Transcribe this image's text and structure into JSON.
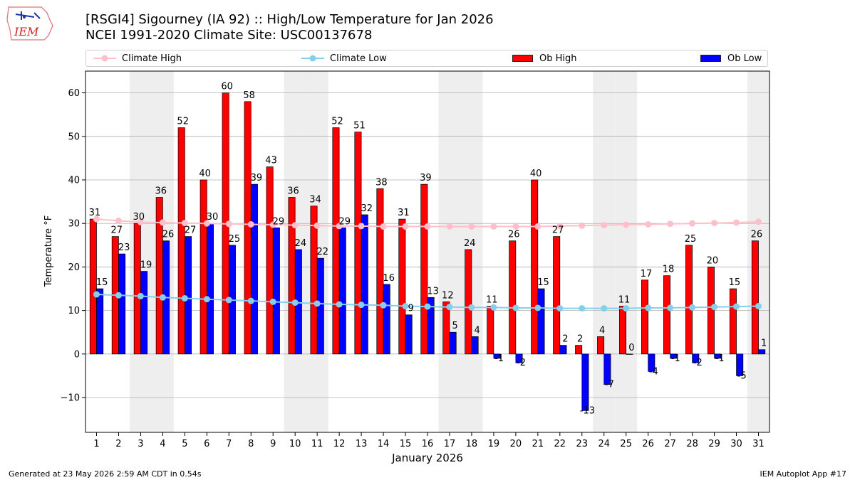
{
  "header": {
    "title_line1": "[RSGI4] Sigourney (IA 92) :: High/Low Temperature for Jan 2026",
    "title_line2": "NCEI 1991-2020 Climate Site: USC00137678",
    "logo_text": "IEM"
  },
  "footer": {
    "generated": "Generated at 23 May 2026 2:59 AM CDT in 0.54s",
    "app": "IEM Autoplot App #17"
  },
  "colors": {
    "ob_high": "#ff0000",
    "ob_low": "#0000ff",
    "climate_high": "#ffc0cb",
    "climate_low": "#87ceeb",
    "weekend_shade": "#eeeeee",
    "grid": "#b0b0b0"
  },
  "chart_data": {
    "type": "bar",
    "xlabel": "January 2026",
    "ylabel": "Temperature °F",
    "ylim": [
      -18,
      65
    ],
    "yticks": [
      -10,
      0,
      10,
      20,
      30,
      40,
      50,
      60
    ],
    "grid": "horizontal",
    "legend_placement": "top",
    "categories": [
      "1",
      "2",
      "3",
      "4",
      "5",
      "6",
      "7",
      "8",
      "9",
      "10",
      "11",
      "12",
      "13",
      "14",
      "15",
      "16",
      "17",
      "18",
      "19",
      "20",
      "21",
      "22",
      "23",
      "24",
      "25",
      "26",
      "27",
      "28",
      "29",
      "30",
      "31"
    ],
    "shaded_days": [
      "3",
      "4",
      "10",
      "11",
      "17",
      "18",
      "24",
      "25",
      "31"
    ],
    "series": [
      {
        "name": "Ob High",
        "kind": "bar",
        "values": [
          31,
          27,
          30,
          36,
          52,
          40,
          60,
          58,
          43,
          36,
          34,
          52,
          51,
          38,
          31,
          39,
          12,
          24,
          11,
          26,
          40,
          27,
          2,
          4,
          11,
          17,
          18,
          25,
          20,
          15,
          26
        ]
      },
      {
        "name": "Ob Low",
        "kind": "bar",
        "values": [
          15,
          23,
          19,
          26,
          27,
          30,
          25,
          39,
          29,
          24,
          22,
          29,
          32,
          16,
          9,
          13,
          5,
          4,
          -1,
          -2,
          15,
          2,
          -13,
          -7,
          0,
          -4,
          -1,
          -2,
          -1,
          -5,
          1
        ]
      },
      {
        "name": "Climate High",
        "kind": "line",
        "values": [
          31,
          30.6,
          30.3,
          30.2,
          30.1,
          30.0,
          29.9,
          29.8,
          29.7,
          29.6,
          29.5,
          29.4,
          29.4,
          29.3,
          29.3,
          29.3,
          29.3,
          29.3,
          29.3,
          29.3,
          29.3,
          29.4,
          29.5,
          29.6,
          29.7,
          29.8,
          29.9,
          30.0,
          30.1,
          30.2,
          30.4
        ]
      },
      {
        "name": "Climate Low",
        "kind": "line",
        "values": [
          13.7,
          13.5,
          13.3,
          13.0,
          12.8,
          12.6,
          12.4,
          12.2,
          12.0,
          11.8,
          11.6,
          11.4,
          11.3,
          11.2,
          11.0,
          10.9,
          10.8,
          10.7,
          10.7,
          10.6,
          10.6,
          10.5,
          10.5,
          10.5,
          10.5,
          10.6,
          10.6,
          10.7,
          10.8,
          10.9,
          11.0
        ]
      }
    ]
  }
}
